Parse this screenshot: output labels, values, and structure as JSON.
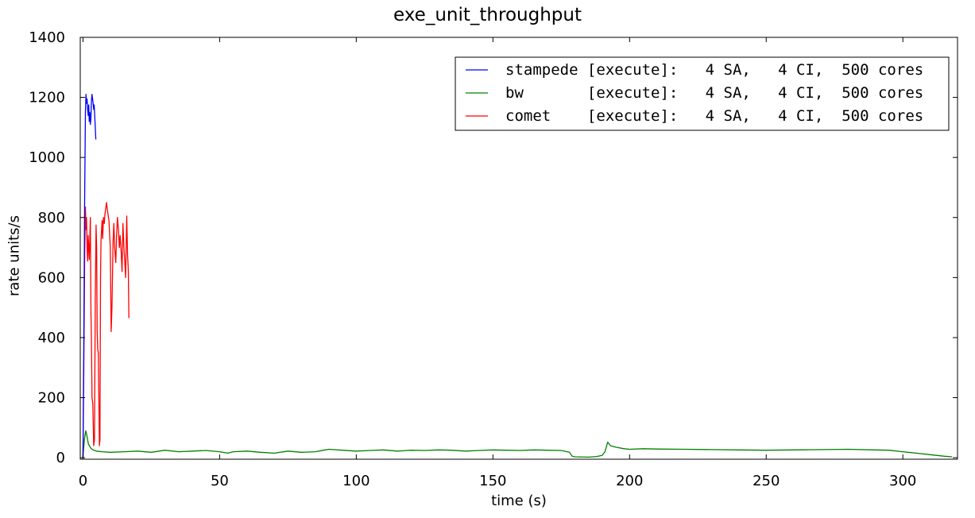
{
  "chart_data": {
    "type": "line",
    "title": "exe_unit_throughput",
    "xlabel": "time (s)",
    "ylabel": "rate units/s",
    "xlim": [
      -1,
      320
    ],
    "ylim": [
      -5,
      1400
    ],
    "xticks": [
      0,
      50,
      100,
      150,
      200,
      250,
      300
    ],
    "yticks": [
      0,
      200,
      400,
      600,
      800,
      1000,
      1200,
      1400
    ],
    "grid": false,
    "legend_position": "top-right",
    "series": [
      {
        "name": "stampede [execute]:   4 SA,   4 CI,  500 cores",
        "color": "#0000ff",
        "x": [
          0.0,
          0.3,
          0.6,
          0.9,
          1.1,
          1.3,
          1.5,
          1.7,
          1.9,
          2.1,
          2.3,
          2.5,
          2.7,
          2.9,
          3.1,
          3.3,
          3.5,
          3.7,
          3.9,
          4.1,
          4.3,
          4.5,
          4.7
        ],
        "y": [
          0,
          400,
          850,
          1150,
          1210,
          1180,
          1195,
          1160,
          1140,
          1175,
          1120,
          1150,
          1110,
          1130,
          1190,
          1210,
          1195,
          1180,
          1160,
          1175,
          1140,
          1100,
          1060
        ]
      },
      {
        "name": "bw       [execute]:   4 SA,   4 CI,  500 cores",
        "color": "#008000",
        "x": [
          0,
          0.5,
          1,
          1.5,
          2,
          3,
          4,
          5,
          7,
          10,
          15,
          20,
          25,
          30,
          35,
          40,
          45,
          50,
          53,
          55,
          60,
          65,
          70,
          75,
          80,
          85,
          88,
          90,
          95,
          100,
          105,
          110,
          115,
          120,
          125,
          130,
          135,
          140,
          145,
          150,
          155,
          160,
          165,
          170,
          175,
          178,
          179,
          180,
          185,
          188,
          190,
          191,
          192,
          193,
          195,
          198,
          200,
          205,
          210,
          220,
          230,
          240,
          250,
          260,
          270,
          280,
          290,
          295,
          300,
          305,
          310,
          315,
          318
        ],
        "y": [
          0,
          60,
          90,
          70,
          45,
          30,
          25,
          22,
          20,
          18,
          20,
          22,
          18,
          25,
          20,
          22,
          24,
          20,
          15,
          20,
          22,
          18,
          15,
          22,
          18,
          20,
          25,
          28,
          25,
          22,
          24,
          26,
          22,
          25,
          24,
          26,
          25,
          22,
          24,
          26,
          25,
          24,
          26,
          25,
          24,
          18,
          5,
          3,
          2,
          4,
          8,
          20,
          52,
          40,
          35,
          30,
          28,
          30,
          29,
          28,
          27,
          26,
          25,
          26,
          27,
          28,
          26,
          25,
          20,
          15,
          10,
          5,
          3
        ]
      },
      {
        "name": "comet    [execute]:   4 SA,   4 CI,  500 cores",
        "color": "#ff0000",
        "x": [
          0,
          0.3,
          0.6,
          0.9,
          1.1,
          1.3,
          1.5,
          1.7,
          1.9,
          2.1,
          2.3,
          2.5,
          2.7,
          2.9,
          3.1,
          3.3,
          3.6,
          3.9,
          4.2,
          4.5,
          4.8,
          5.0,
          5.2,
          5.4,
          5.6,
          5.8,
          6.0,
          6.2,
          6.4,
          6.6,
          6.8,
          7.0,
          7.2,
          7.5,
          7.8,
          8.0,
          8.3,
          8.6,
          9.0,
          9.5,
          10.0,
          10.3,
          10.6,
          11.0,
          11.3,
          11.6,
          12.0,
          12.3,
          12.6,
          13.0,
          13.3,
          13.6,
          14.0,
          14.3,
          14.6,
          15.0,
          15.3,
          15.6,
          16.0,
          16.3,
          16.6,
          16.8
        ],
        "y": [
          0,
          300,
          650,
          835,
          760,
          800,
          700,
          655,
          740,
          700,
          660,
          725,
          800,
          500,
          380,
          200,
          180,
          40,
          60,
          520,
          775,
          700,
          420,
          360,
          350,
          200,
          40,
          60,
          600,
          720,
          760,
          790,
          730,
          800,
          780,
          810,
          830,
          850,
          820,
          790,
          700,
          420,
          500,
          720,
          780,
          700,
          650,
          740,
          800,
          760,
          700,
          740,
          680,
          620,
          780,
          700,
          650,
          600,
          805,
          680,
          620,
          465
        ]
      }
    ]
  }
}
